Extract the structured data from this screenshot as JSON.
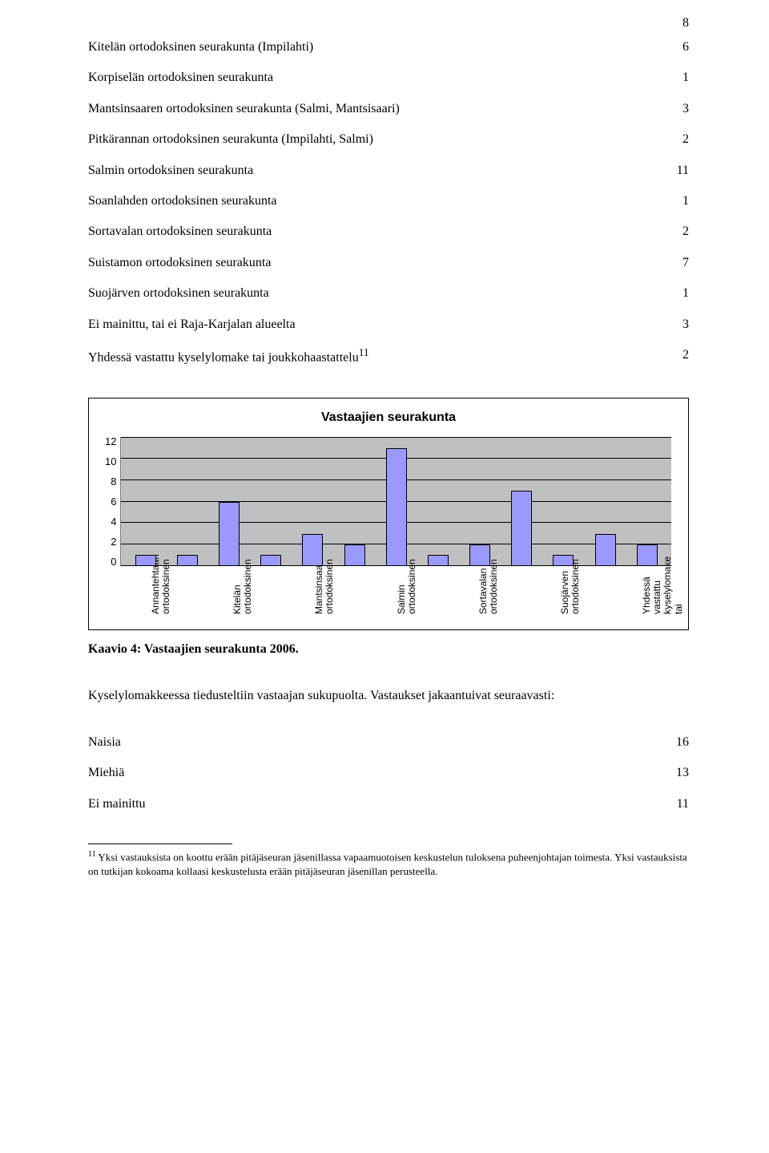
{
  "page_number": "8",
  "table": {
    "rows": [
      {
        "label": "Kitelän ortodoksinen seurakunta (Impilahti)",
        "value": "6"
      },
      {
        "label": "Korpiselän ortodoksinen seurakunta",
        "value": "1"
      },
      {
        "label": "Mantsinsaaren ortodoksinen seurakunta (Salmi, Mantsisaari)",
        "value": "3"
      },
      {
        "label": "Pitkärannan ortodoksinen seurakunta (Impilahti, Salmi)",
        "value": "2"
      },
      {
        "label": "Salmin ortodoksinen seurakunta",
        "value": "11"
      },
      {
        "label": "Soanlahden ortodoksinen seurakunta",
        "value": "1"
      },
      {
        "label": "Sortavalan ortodoksinen seurakunta",
        "value": "2"
      },
      {
        "label": "Suistamon ortodoksinen seurakunta",
        "value": "7"
      },
      {
        "label": "Suojärven ortodoksinen seurakunta",
        "value": "1"
      },
      {
        "label": "Ei mainittu, tai ei Raja-Karjalan alueelta",
        "value": "3"
      },
      {
        "label": "Yhdessä vastattu kyselylomake tai joukkohaastattelu¹¹",
        "value": "2"
      }
    ]
  },
  "chart": {
    "title": "Vastaajien seurakunta",
    "type": "bar",
    "ylim_max": 12,
    "y_ticks": [
      "12",
      "10",
      "8",
      "6",
      "4",
      "2",
      "0"
    ],
    "bar_color": "#9999ff",
    "bar_border": "#000000",
    "plot_bg": "#c0c0c0",
    "grid_color": "#000000",
    "categories": [
      {
        "label_a": "Annantehtaan",
        "label_b": "ortodoksinen",
        "value": 1
      },
      {
        "label_a": "",
        "label_b": "",
        "value": 1
      },
      {
        "label_a": "Kitelän",
        "label_b": "ortodoksinen",
        "value": 6
      },
      {
        "label_a": "",
        "label_b": "",
        "value": 1
      },
      {
        "label_a": "Mantsinsaaren",
        "label_b": "ortodoksinen",
        "value": 3
      },
      {
        "label_a": "",
        "label_b": "",
        "value": 2
      },
      {
        "label_a": "Salmin",
        "label_b": "ortodoksinen",
        "value": 11
      },
      {
        "label_a": "",
        "label_b": "",
        "value": 1
      },
      {
        "label_a": "Sortavalan",
        "label_b": "ortodoksinen",
        "value": 2
      },
      {
        "label_a": "",
        "label_b": "",
        "value": 7
      },
      {
        "label_a": "Suojärven",
        "label_b": "ortodoksinen",
        "value": 1
      },
      {
        "label_a": "",
        "label_b": "",
        "value": 3
      },
      {
        "label_a": "Yhdessä vastattu",
        "label_b": "kyselylomake tai",
        "value": 2
      }
    ]
  },
  "caption": "Kaavio 4: Vastaajien seurakunta 2006.",
  "body_p1": "Kyselylomakkeessa tiedusteltiin vastaajan sukupuolta. Vastaukset jakaantuivat seuraavasti:",
  "table2": {
    "rows": [
      {
        "label": "Naisia",
        "value": "16"
      },
      {
        "label": "Miehiä",
        "value": "13"
      },
      {
        "label": "Ei mainittu",
        "value": "11"
      }
    ]
  },
  "footnote": {
    "num": "11",
    "text": " Yksi vastauksista on koottu erään pitäjäseuran jäsenillassa vapaamuotoisen keskustelun tuloksena puheenjohtajan toimesta. Yksi vastauksista on tutkijan kokoama kollaasi keskustelusta erään pitäjäseuran jäsenillan perusteella."
  }
}
